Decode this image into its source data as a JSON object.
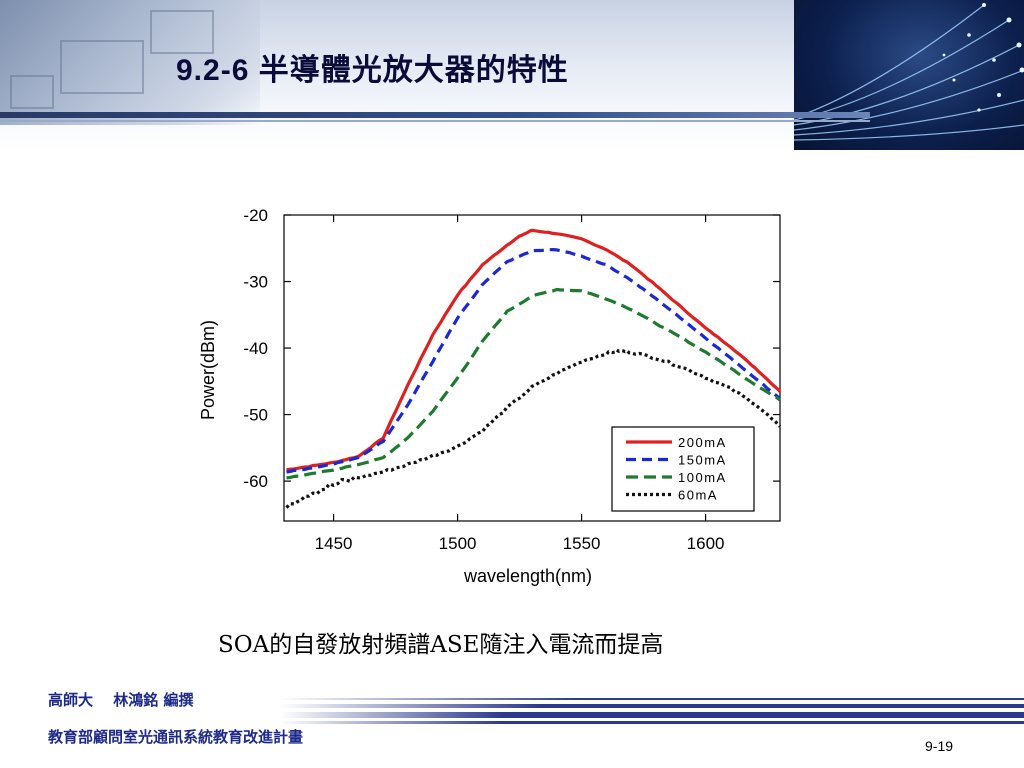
{
  "slide": {
    "title": "9.2-6 半導體光放大器的特性",
    "caption": "SOA的自發放射頻譜ASE隨注入電流而提高",
    "footer_line1": "高師大　 林鴻銘 編撰",
    "footer_line2": "教育部顧問室光通訊系統教育改進計畫",
    "page_number": "9-19"
  },
  "colors": {
    "title": "#0b0b3a",
    "footer_text": "#1e2a8a",
    "footer_stripe": "#2b3a8f"
  },
  "chart_data": {
    "type": "line",
    "xlabel": "wavelength(nm)",
    "ylabel": "Power(dBm)",
    "xlim": [
      1430,
      1630
    ],
    "ylim": [
      -66,
      -20
    ],
    "xticks": [
      1450,
      1500,
      1550,
      1600
    ],
    "yticks": [
      -20,
      -30,
      -40,
      -50,
      -60
    ],
    "grid": false,
    "legend_position": "bottom-right",
    "series": [
      {
        "name": "200mA",
        "color": "#e02020",
        "dash": "solid",
        "x": [
          1431,
          1440,
          1450,
          1460,
          1470,
          1480,
          1490,
          1500,
          1510,
          1520,
          1525,
          1530,
          1540,
          1550,
          1560,
          1570,
          1580,
          1590,
          1600,
          1610,
          1620,
          1630
        ],
        "y": [
          -58.3,
          -57.8,
          -57.2,
          -56.3,
          -53.5,
          -45.5,
          -38.0,
          -32.0,
          -27.5,
          -24.5,
          -23.2,
          -22.3,
          -22.8,
          -23.6,
          -25.2,
          -27.5,
          -30.6,
          -33.8,
          -37.0,
          -39.8,
          -43.0,
          -46.5
        ]
      },
      {
        "name": "150mA",
        "color": "#1a2ad0",
        "dash": "10,6",
        "x": [
          1431,
          1440,
          1450,
          1460,
          1470,
          1480,
          1490,
          1500,
          1510,
          1520,
          1530,
          1540,
          1550,
          1560,
          1570,
          1580,
          1590,
          1600,
          1610,
          1620,
          1630
        ],
        "y": [
          -58.6,
          -58.1,
          -57.4,
          -56.5,
          -54.0,
          -48.5,
          -42.0,
          -35.5,
          -30.5,
          -27.0,
          -25.4,
          -25.2,
          -26.2,
          -27.5,
          -29.8,
          -32.6,
          -35.5,
          -38.5,
          -41.5,
          -44.5,
          -47.6
        ]
      },
      {
        "name": "100mA",
        "color": "#1e7a2e",
        "dash": "12,6",
        "x": [
          1431,
          1440,
          1450,
          1460,
          1470,
          1480,
          1490,
          1500,
          1510,
          1520,
          1530,
          1540,
          1550,
          1560,
          1570,
          1580,
          1590,
          1600,
          1610,
          1620,
          1630
        ],
        "y": [
          -59.5,
          -59.0,
          -58.3,
          -57.5,
          -56.5,
          -53.5,
          -49.5,
          -44.5,
          -39.0,
          -34.5,
          -32.2,
          -31.2,
          -31.4,
          -32.6,
          -34.2,
          -36.3,
          -38.4,
          -40.6,
          -43.0,
          -45.5,
          -47.8
        ]
      },
      {
        "name": "60mA",
        "color": "#111111",
        "dash": "3,3",
        "x": [
          1431,
          1440,
          1450,
          1460,
          1470,
          1480,
          1490,
          1500,
          1510,
          1520,
          1530,
          1540,
          1550,
          1560,
          1565,
          1570,
          1580,
          1590,
          1600,
          1610,
          1620,
          1630
        ],
        "y": [
          -63.5,
          -61.8,
          -60.6,
          -59.5,
          -58.6,
          -57.5,
          -56.2,
          -54.8,
          -52.4,
          -49.0,
          -45.9,
          -43.8,
          -42.0,
          -40.8,
          -40.4,
          -40.6,
          -41.5,
          -42.8,
          -44.4,
          -46.1,
          -48.4,
          -51.8
        ]
      }
    ]
  }
}
